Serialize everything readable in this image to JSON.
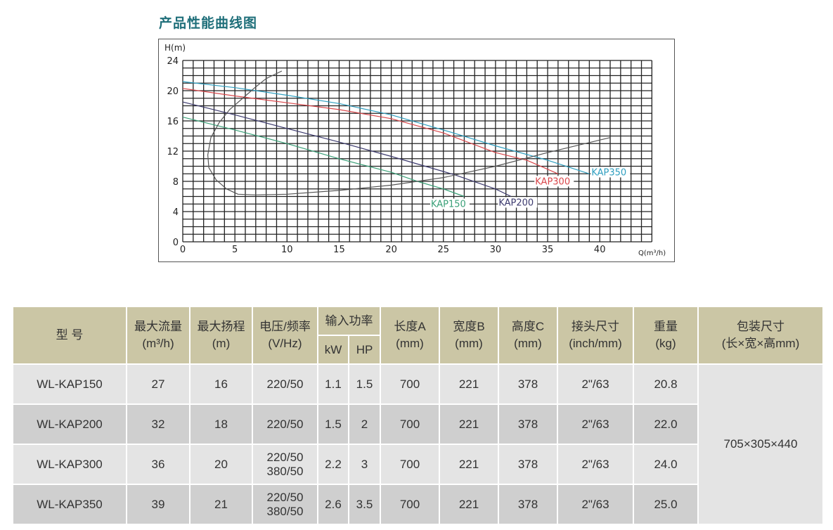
{
  "title": "产品性能曲线图",
  "chart_data": {
    "type": "line",
    "xlabel": "Q(m³/h)",
    "ylabel": "H(m)",
    "xlim": [
      0,
      45
    ],
    "ylim": [
      0,
      24
    ],
    "xticks": [
      0,
      5,
      10,
      15,
      20,
      25,
      30,
      35,
      40
    ],
    "yticks": [
      0,
      4,
      8,
      12,
      16,
      20,
      24
    ],
    "grid": true,
    "series": [
      {
        "name": "KAP150",
        "color": "#3aa078",
        "x": [
          0,
          5,
          10,
          15,
          20,
          22.5,
          25,
          27
        ],
        "y": [
          16.5,
          14.8,
          13,
          11,
          9.2,
          8,
          7,
          6
        ]
      },
      {
        "name": "KAP200",
        "color": "#3c3a6e",
        "x": [
          0,
          5,
          10,
          15,
          20,
          25,
          26,
          30,
          31.5
        ],
        "y": [
          18.5,
          16.8,
          15,
          13.2,
          11.3,
          9.3,
          8.9,
          7,
          6
        ]
      },
      {
        "name": "KAP300",
        "color": "#d9474b",
        "x": [
          0,
          5,
          10,
          15,
          20,
          25,
          30,
          33,
          36
        ],
        "y": [
          20.3,
          19.3,
          18.4,
          17.5,
          16.3,
          14.4,
          11.8,
          10.8,
          9
        ]
      },
      {
        "name": "KAP350",
        "color": "#2f9fc0",
        "x": [
          0,
          5,
          10,
          15,
          20,
          25,
          30,
          35,
          39
        ],
        "y": [
          21.2,
          20.4,
          19.4,
          18.3,
          16.8,
          14.8,
          12.7,
          10.8,
          9
        ]
      },
      {
        "color": "#555555",
        "x": [
          9.5,
          8,
          7,
          6,
          4.5,
          3.5,
          2.7,
          2.4,
          2.5,
          3.2,
          4.2,
          5.3,
          7,
          10,
          15,
          20,
          25,
          30,
          35,
          41
        ],
        "y": [
          22.6,
          21.6,
          20.5,
          19.3,
          17.5,
          15.8,
          13.8,
          11.5,
          9.8,
          8.2,
          7,
          6.3,
          6.2,
          6.3,
          6.8,
          7.5,
          8.5,
          10,
          11.8,
          13.8
        ]
      }
    ]
  },
  "table": {
    "headers": {
      "model": "型 号",
      "max_flow": "最大流量",
      "max_flow_unit": "(m³/h)",
      "max_head": "最大扬程",
      "max_head_unit": "(m)",
      "voltage": "电压/频率",
      "voltage_unit": "(V/Hz)",
      "power": "输入功率",
      "kw": "kW",
      "hp": "HP",
      "length": "长度A",
      "length_unit": "(mm)",
      "width": "宽度B",
      "width_unit": "(mm)",
      "height": "高度C",
      "height_unit": "(mm)",
      "connector": "接头尺寸",
      "connector_unit": "(inch/mm)",
      "weight": "重量",
      "weight_unit": "(kg)",
      "package": "包装尺寸",
      "package_unit": "(长×宽×高mm)"
    },
    "rows": [
      {
        "model": "WL-KAP150",
        "flow": "27",
        "head": "16",
        "voltage": "220/50",
        "voltage2": "",
        "kw": "1.1",
        "hp": "1.5",
        "a": "700",
        "b": "221",
        "c": "378",
        "conn": "2\"/63",
        "weight": "20.8"
      },
      {
        "model": "WL-KAP200",
        "flow": "32",
        "head": "18",
        "voltage": "220/50",
        "voltage2": "",
        "kw": "1.5",
        "hp": "2",
        "a": "700",
        "b": "221",
        "c": "378",
        "conn": "2\"/63",
        "weight": "22.0"
      },
      {
        "model": "WL-KAP300",
        "flow": "36",
        "head": "20",
        "voltage": "220/50",
        "voltage2": "380/50",
        "kw": "2.2",
        "hp": "3",
        "a": "700",
        "b": "221",
        "c": "378",
        "conn": "2\"/63",
        "weight": "24.0"
      },
      {
        "model": "WL-KAP350",
        "flow": "39",
        "head": "21",
        "voltage": "220/50",
        "voltage2": "380/50",
        "kw": "2.6",
        "hp": "3.5",
        "a": "700",
        "b": "221",
        "c": "378",
        "conn": "2\"/63",
        "weight": "25.0"
      }
    ],
    "package": "705×305×440"
  }
}
